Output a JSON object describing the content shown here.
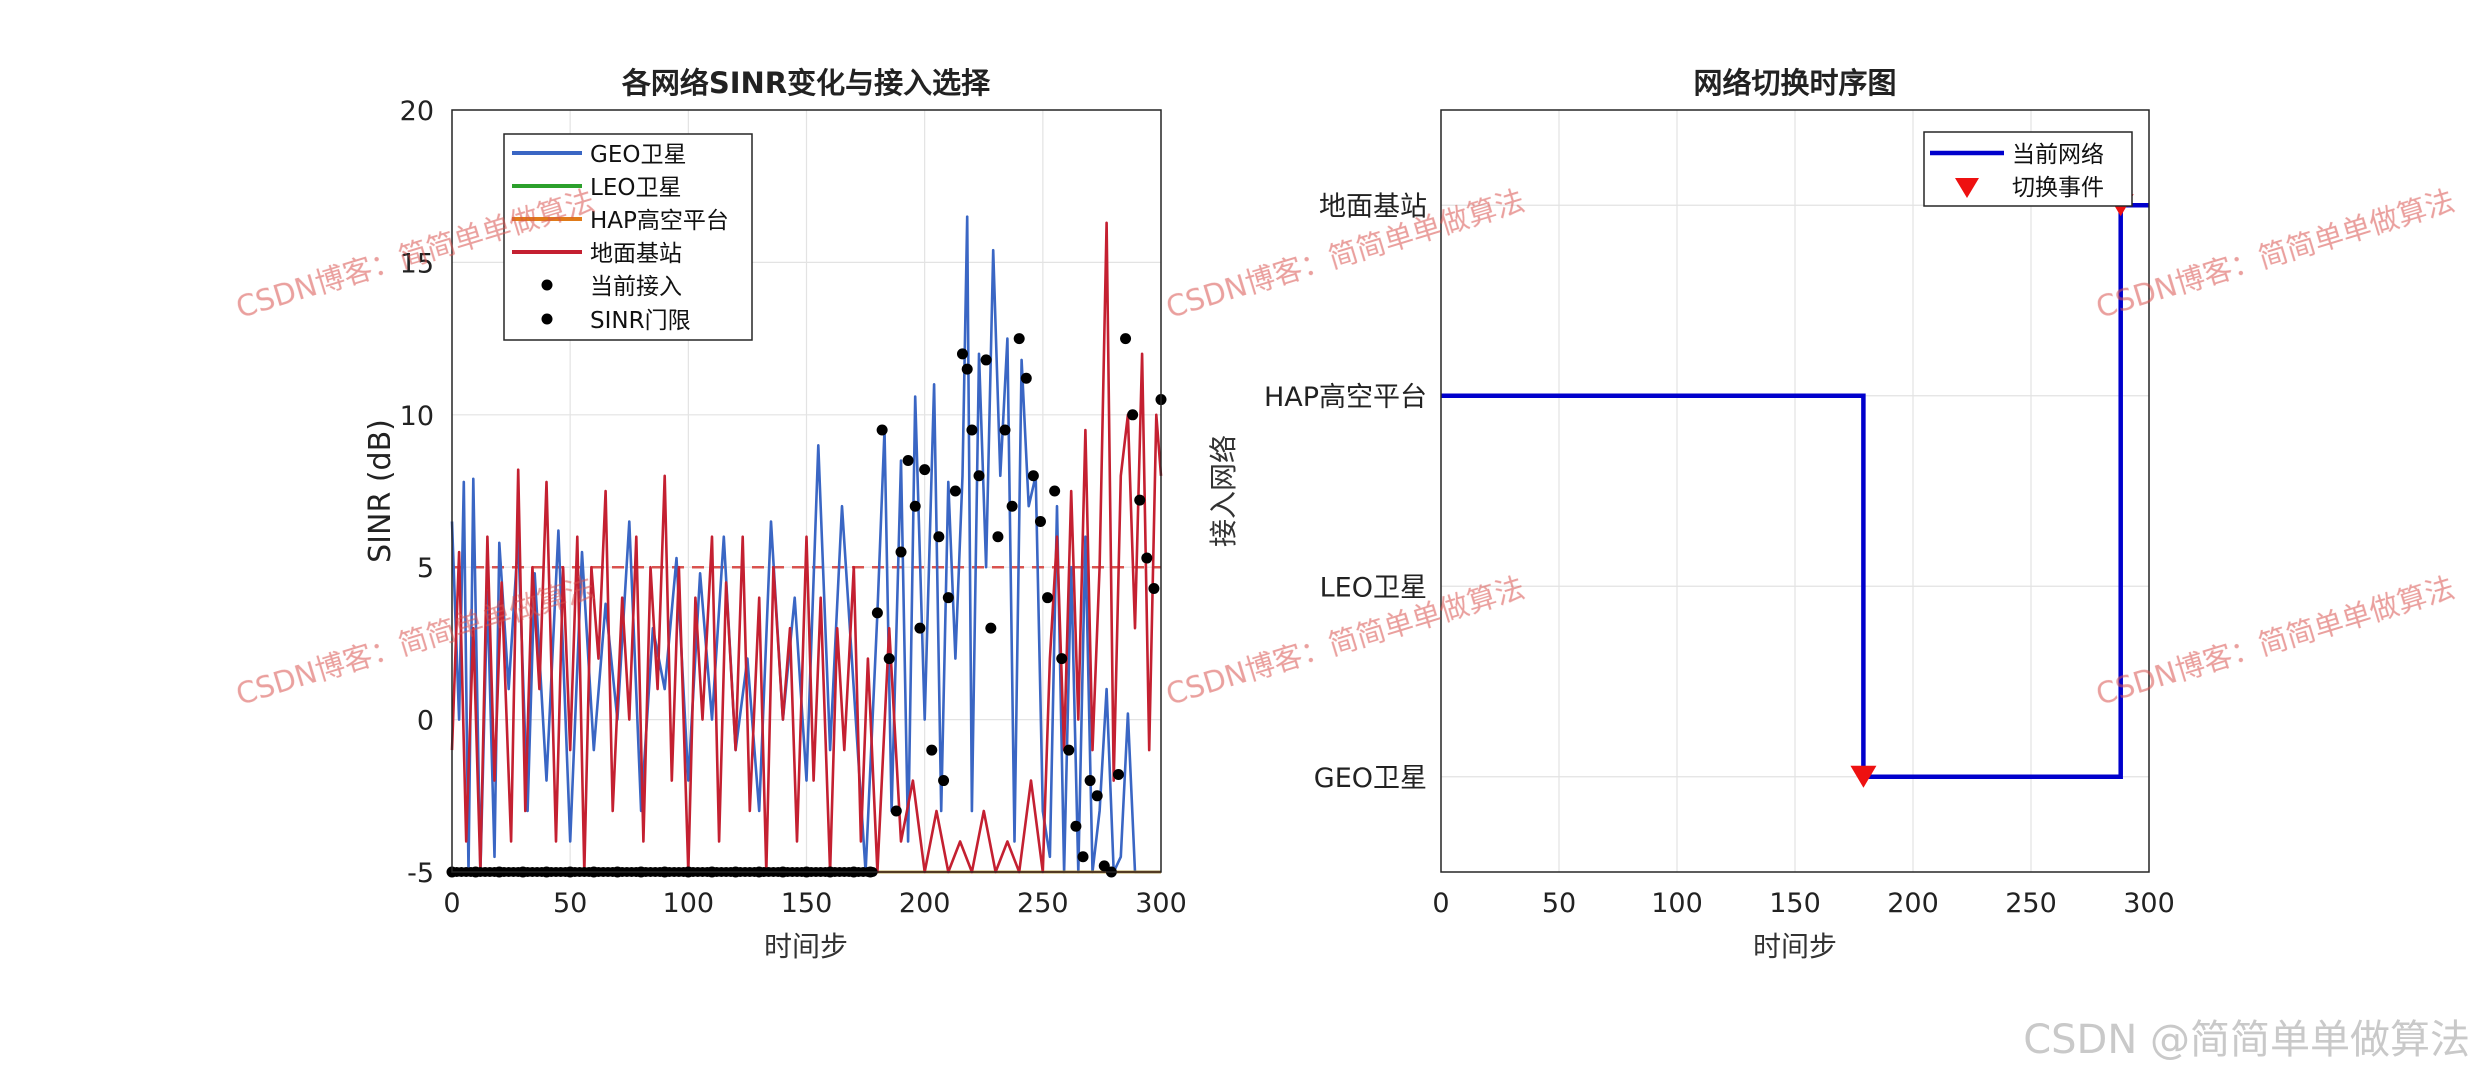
{
  "watermark": {
    "overlay_text": "CSDN博客：简简单单做算法",
    "footer_text": "CSDN @简简单单做算法",
    "color": "#d9534f"
  },
  "colors": {
    "geo": "#3a66c4",
    "leo": "#2ca02c",
    "hap": "#e07b1a",
    "ground": "#c42031",
    "access": "#000000",
    "threshold": "#d9534f",
    "current": "#0000cc",
    "switch": "#ee1111"
  },
  "chart_data": [
    {
      "type": "line",
      "title": "各网络SINR变化与接入选择",
      "xlabel": "时间步",
      "ylabel": "SINR (dB)",
      "xlim": [
        0,
        300
      ],
      "ylim": [
        -5,
        20
      ],
      "xticks": [
        0,
        50,
        100,
        150,
        200,
        250,
        300
      ],
      "yticks": [
        -5,
        0,
        5,
        10,
        15,
        20
      ],
      "grid": true,
      "legend_position": "top-left",
      "legend": [
        "GEO卫星",
        "LEO卫星",
        "HAP高空平台",
        "地面基站",
        "当前接入",
        "SINR门限"
      ],
      "threshold": 5,
      "series": [
        {
          "name": "GEO卫星",
          "x": [
            0,
            3,
            5,
            7,
            9,
            12,
            15,
            18,
            20,
            24,
            28,
            32,
            35,
            40,
            45,
            50,
            55,
            60,
            65,
            70,
            75,
            80,
            85,
            90,
            95,
            100,
            105,
            110,
            115,
            120,
            125,
            130,
            135,
            140,
            145,
            150,
            155,
            160,
            165,
            170,
            175,
            180,
            183,
            186,
            190,
            193,
            196,
            200,
            204,
            207,
            210,
            213,
            216,
            218,
            220,
            223,
            226,
            229,
            232,
            235,
            238,
            241,
            244,
            247,
            250,
            253,
            256,
            259,
            262,
            265,
            268,
            271,
            274,
            277,
            280,
            283,
            286,
            289,
            292,
            295,
            298,
            300
          ],
          "values": [
            6.5,
            0,
            7.8,
            -5,
            7.9,
            -5,
            4.2,
            -4.5,
            5.8,
            1,
            6,
            -3,
            4.8,
            -2,
            6.2,
            -4,
            5.5,
            -1,
            3.8,
            0,
            6.5,
            -3,
            3,
            1,
            5.3,
            -2,
            4.8,
            0,
            6,
            -1,
            2,
            -3,
            6.5,
            0,
            4,
            -2,
            9,
            -1,
            7,
            1,
            -5,
            3.5,
            9.5,
            -3,
            8.5,
            -4,
            10.6,
            0,
            11,
            -3,
            7.8,
            2,
            8,
            16.5,
            -3,
            12,
            5,
            15.4,
            8,
            12.5,
            -4,
            11.8,
            7,
            8,
            -3,
            -4.5,
            7,
            -5,
            5,
            -5,
            6,
            -5,
            -3,
            1,
            -5,
            -4.5,
            0.2,
            -5,
            -5,
            -5,
            -5,
            -5
          ]
        },
        {
          "name": "LEO卫星",
          "x": [
            0,
            300
          ],
          "values": [
            -5,
            -5
          ]
        },
        {
          "name": "HAP高空平台",
          "x": [
            0,
            300
          ],
          "values": [
            -5,
            -5
          ]
        },
        {
          "name": "地面基站",
          "x": [
            0,
            3,
            6,
            9,
            12,
            15,
            18,
            21,
            25,
            28,
            31,
            34,
            37,
            40,
            44,
            47,
            50,
            53,
            56,
            59,
            62,
            65,
            68,
            72,
            75,
            78,
            81,
            84,
            87,
            90,
            93,
            96,
            100,
            103,
            106,
            110,
            113,
            116,
            120,
            123,
            126,
            130,
            133,
            136,
            140,
            143,
            146,
            150,
            153,
            156,
            160,
            163,
            166,
            170,
            173,
            176,
            180,
            185,
            190,
            195,
            200,
            205,
            210,
            215,
            220,
            225,
            230,
            235,
            240,
            245,
            250,
            253,
            256,
            259,
            262,
            265,
            268,
            271,
            274,
            277,
            280,
            283,
            286,
            289,
            292,
            295,
            298,
            300
          ],
          "values": [
            -1,
            5.5,
            -4,
            3,
            -5,
            6,
            -2,
            4.5,
            -4,
            8.2,
            -3,
            5,
            1,
            7.8,
            -4,
            5,
            -1,
            6,
            -5,
            5,
            2,
            7.5,
            -3,
            4,
            0,
            6,
            -4,
            5,
            1,
            8,
            -2,
            5,
            -5,
            4,
            0,
            6,
            -4,
            4.5,
            -1,
            6,
            -3,
            4,
            -5,
            5,
            0,
            3,
            -4,
            6,
            -2,
            4,
            -5,
            3,
            -1,
            5,
            -4,
            2,
            -5,
            3,
            -4,
            -2,
            -5,
            -3,
            -5,
            -4,
            -5,
            -3,
            -5,
            -4,
            -5,
            -2,
            -5,
            2,
            6,
            -1,
            7.5,
            0,
            9.5,
            -1,
            5,
            16.3,
            -2,
            8,
            10,
            3,
            12,
            -1,
            10,
            8
          ]
        }
      ],
      "access_points": {
        "name": "当前接入",
        "x": [
          0,
          10,
          20,
          30,
          40,
          50,
          60,
          70,
          80,
          90,
          100,
          110,
          120,
          130,
          140,
          150,
          160,
          170,
          177,
          180,
          182,
          185,
          188,
          190,
          193,
          196,
          198,
          200,
          203,
          206,
          208,
          210,
          213,
          216,
          218,
          220,
          223,
          226,
          228,
          231,
          234,
          237,
          240,
          243,
          246,
          249,
          252,
          255,
          258,
          261,
          264,
          267,
          270,
          273,
          276,
          279,
          282,
          285,
          288,
          291,
          294,
          297,
          300
        ],
        "values": [
          -5,
          -5,
          -5,
          -5,
          -5,
          -5,
          -5,
          -5,
          -5,
          -5,
          -5,
          -5,
          -5,
          -5,
          -5,
          -5,
          -5,
          -5,
          -5,
          3.5,
          9.5,
          2,
          -3,
          5.5,
          8.5,
          7,
          3,
          8.2,
          -1,
          6,
          -2,
          4,
          7.5,
          12,
          11.5,
          9.5,
          8,
          11.8,
          3,
          6,
          9.5,
          7,
          12.5,
          11.2,
          8,
          6.5,
          4,
          7.5,
          2,
          -1,
          -3.5,
          -4.5,
          -2,
          -2.5,
          -4.8,
          -5,
          -1.8,
          12.5,
          10,
          7.2,
          5.3,
          4.3,
          10.5
        ]
      }
    },
    {
      "type": "line",
      "title": "网络切换时序图",
      "xlabel": "时间步",
      "ylabel": "接入网络",
      "xlim": [
        0,
        300
      ],
      "ylim": [
        0.5,
        4.5
      ],
      "xticks": [
        0,
        50,
        100,
        150,
        200,
        250,
        300
      ],
      "yticks": [
        1,
        2,
        3,
        4
      ],
      "ytick_labels": [
        "GEO卫星",
        "LEO卫星",
        "HAP高空平台",
        "地面基站"
      ],
      "grid": true,
      "legend_position": "top-right",
      "legend": [
        "当前网络",
        "切换事件"
      ],
      "series": [
        {
          "name": "当前网络",
          "x": [
            0,
            179,
            179,
            288,
            288,
            300
          ],
          "values": [
            3,
            3,
            1,
            1,
            4,
            4
          ]
        }
      ],
      "switch_events": {
        "name": "切换事件",
        "x": [
          179,
          288
        ],
        "values": [
          1,
          4
        ]
      }
    }
  ]
}
